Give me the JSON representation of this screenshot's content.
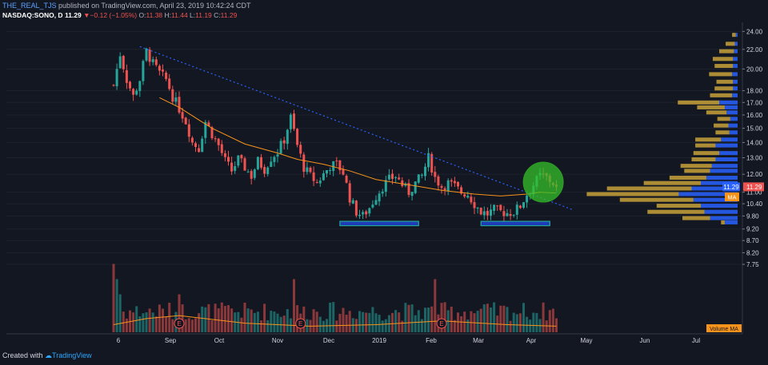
{
  "header": {
    "author": "THE_REAL_TJS",
    "published_text": "published on TradingView.com, April 23, 2019 10:42:24 CDT",
    "symbol": "NASDAQ:SONO, D",
    "last": "11.29",
    "change": "−0.12 (−1.05%)",
    "o_label": "O:",
    "o": "11.38",
    "h_label": "H:",
    "h": "11.44",
    "l_label": "L:",
    "l": "11.19",
    "c_label": "C:",
    "c": "11.29"
  },
  "footer": {
    "created_with": "Created with",
    "brand": "TradingView"
  },
  "colors": {
    "background": "#131722",
    "up": "#26a69a",
    "down": "#ef5350",
    "ma": "#f7931a",
    "trendline": "#2962ff",
    "vp_up": "#2962ff",
    "vp_down": "#c8a23a",
    "support_box": "#1e3bb8",
    "support_border": "#26a69a",
    "highlight": "#35c02a"
  },
  "chart_data": {
    "type": "candlestick",
    "price_axis_ticks": [
      "24.00",
      "22.00",
      "20.00",
      "18.00",
      "17.00",
      "16.00",
      "15.00",
      "14.00",
      "13.00",
      "12.00",
      "11.00",
      "10.40",
      "9.80",
      "9.20",
      "8.70",
      "8.20",
      "7.75"
    ],
    "price_min": 7.2,
    "price_max": 24.5,
    "scale": "log",
    "time_axis_labels": [
      "6",
      "Sep",
      "Oct",
      "Nov",
      "Dec",
      "2019",
      "Feb",
      "Mar",
      "Apr",
      "May",
      "Jun",
      "Jul"
    ],
    "last_price_label": "11.29",
    "ma_label": "MA",
    "volume_ma_label": "Volume MA",
    "earnings_markers": [
      "E",
      "E",
      "E"
    ],
    "price_path": [
      [
        0,
        18.5
      ],
      [
        2,
        21.5
      ],
      [
        4,
        19.0
      ],
      [
        6,
        17.5
      ],
      [
        8,
        19.0
      ],
      [
        10,
        21.8
      ],
      [
        12,
        20.5
      ],
      [
        14,
        19.6
      ],
      [
        16,
        19.0
      ],
      [
        18,
        17.5
      ],
      [
        20,
        16.5
      ],
      [
        22,
        15.5
      ],
      [
        24,
        14.0
      ],
      [
        26,
        13.6
      ],
      [
        28,
        15.5
      ],
      [
        30,
        14.6
      ],
      [
        32,
        13.8
      ],
      [
        34,
        12.8
      ],
      [
        36,
        12.2
      ],
      [
        38,
        12.9
      ],
      [
        40,
        12.4
      ],
      [
        42,
        11.9
      ],
      [
        44,
        12.8
      ],
      [
        46,
        12.3
      ],
      [
        48,
        13.0
      ],
      [
        50,
        13.4
      ],
      [
        52,
        14.2
      ],
      [
        54,
        15.8
      ],
      [
        56,
        13.8
      ],
      [
        58,
        12.4
      ],
      [
        60,
        11.9
      ],
      [
        62,
        11.5
      ],
      [
        64,
        12.0
      ],
      [
        66,
        12.5
      ],
      [
        68,
        12.6
      ],
      [
        70,
        12.1
      ],
      [
        72,
        10.7
      ],
      [
        74,
        10.0
      ],
      [
        76,
        9.8
      ],
      [
        78,
        10.2
      ],
      [
        80,
        10.8
      ],
      [
        82,
        11.3
      ],
      [
        84,
        11.7
      ],
      [
        86,
        11.9
      ],
      [
        88,
        11.4
      ],
      [
        90,
        11.0
      ],
      [
        92,
        11.5
      ],
      [
        94,
        11.9
      ],
      [
        96,
        13.0
      ],
      [
        98,
        11.8
      ],
      [
        100,
        11.3
      ],
      [
        102,
        11.5
      ],
      [
        104,
        11.3
      ],
      [
        106,
        11.0
      ],
      [
        108,
        10.9
      ],
      [
        110,
        10.4
      ],
      [
        112,
        10.0
      ],
      [
        114,
        9.9
      ],
      [
        116,
        10.1
      ],
      [
        118,
        10.0
      ],
      [
        120,
        9.95
      ],
      [
        122,
        10.0
      ],
      [
        124,
        10.3
      ],
      [
        126,
        10.9
      ],
      [
        128,
        11.4
      ],
      [
        130,
        11.9
      ],
      [
        132,
        11.8
      ],
      [
        134,
        11.5
      ],
      [
        135,
        11.29
      ]
    ],
    "moving_average": [
      [
        14,
        17.4
      ],
      [
        20,
        16.6
      ],
      [
        30,
        15.0
      ],
      [
        40,
        13.9
      ],
      [
        50,
        13.3
      ],
      [
        56,
        12.9
      ],
      [
        64,
        12.6
      ],
      [
        72,
        12.2
      ],
      [
        80,
        11.7
      ],
      [
        90,
        11.4
      ],
      [
        100,
        11.1
      ],
      [
        110,
        10.9
      ],
      [
        118,
        10.8
      ],
      [
        126,
        10.9
      ],
      [
        130,
        11.0
      ],
      [
        135,
        10.95
      ]
    ],
    "trendline": {
      "start": [
        8,
        22.3
      ],
      "end": [
        140,
        10.1
      ]
    },
    "support_zones": [
      {
        "x_start": 69,
        "x_end": 93,
        "low": 9.35,
        "high": 9.55
      },
      {
        "x_start": 112,
        "x_end": 133,
        "low": 9.35,
        "high": 9.55
      }
    ],
    "highlight_circle": {
      "x": 131,
      "price": 11.55
    },
    "volume_ma": [
      [
        0,
        0.1
      ],
      [
        10,
        0.18
      ],
      [
        20,
        0.22
      ],
      [
        40,
        0.12
      ],
      [
        60,
        0.08
      ],
      [
        80,
        0.1
      ],
      [
        100,
        0.15
      ],
      [
        120,
        0.1
      ],
      [
        135,
        0.08
      ]
    ],
    "volume_profile": [
      {
        "p": 23.6,
        "up": 2,
        "down": 4
      },
      {
        "p": 22.6,
        "up": 3,
        "down": 10
      },
      {
        "p": 21.8,
        "up": 4,
        "down": 16
      },
      {
        "p": 21.0,
        "up": 5,
        "down": 22
      },
      {
        "p": 20.3,
        "up": 5,
        "down": 20
      },
      {
        "p": 19.5,
        "up": 6,
        "down": 25
      },
      {
        "p": 18.8,
        "up": 5,
        "down": 18
      },
      {
        "p": 18.2,
        "up": 5,
        "down": 20
      },
      {
        "p": 17.6,
        "up": 6,
        "down": 24
      },
      {
        "p": 17.0,
        "up": 20,
        "down": 45
      },
      {
        "p": 16.6,
        "up": 14,
        "down": 30
      },
      {
        "p": 16.2,
        "up": 12,
        "down": 22
      },
      {
        "p": 15.7,
        "up": 8,
        "down": 14
      },
      {
        "p": 15.2,
        "up": 10,
        "down": 16
      },
      {
        "p": 14.7,
        "up": 9,
        "down": 15
      },
      {
        "p": 14.2,
        "up": 18,
        "down": 28
      },
      {
        "p": 13.8,
        "up": 24,
        "down": 22
      },
      {
        "p": 13.3,
        "up": 20,
        "down": 28
      },
      {
        "p": 12.9,
        "up": 24,
        "down": 26
      },
      {
        "p": 12.5,
        "up": 28,
        "down": 34
      },
      {
        "p": 12.2,
        "up": 30,
        "down": 28
      },
      {
        "p": 11.8,
        "up": 34,
        "down": 40
      },
      {
        "p": 11.5,
        "up": 40,
        "down": 62
      },
      {
        "p": 11.2,
        "up": 50,
        "down": 92
      },
      {
        "p": 10.9,
        "up": 64,
        "down": 100
      },
      {
        "p": 10.6,
        "up": 48,
        "down": 80
      },
      {
        "p": 10.3,
        "up": 40,
        "down": 48
      },
      {
        "p": 10.0,
        "up": 36,
        "down": 62
      },
      {
        "p": 9.7,
        "up": 30,
        "down": 30
      },
      {
        "p": 9.5,
        "up": 14,
        "down": 4
      }
    ]
  }
}
